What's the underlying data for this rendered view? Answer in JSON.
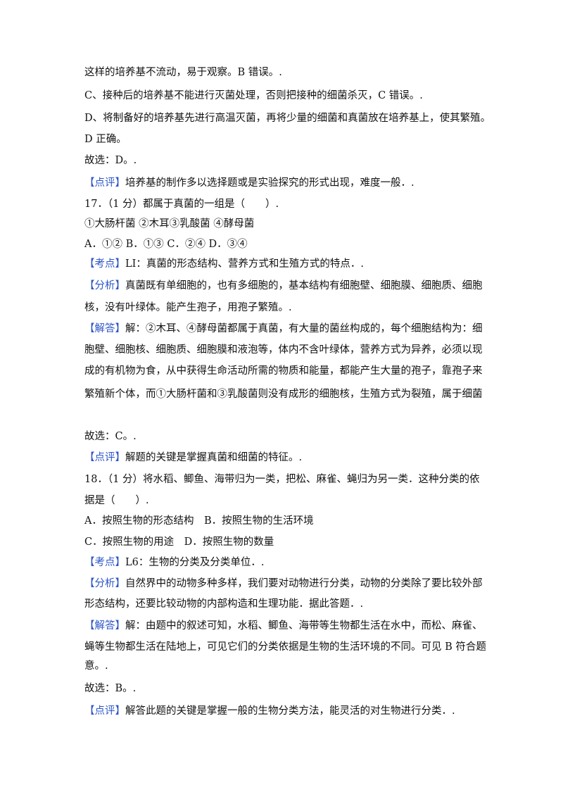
{
  "lines": [
    {
      "text": "这样的培养基不流动，易于观察。B 错误。."
    },
    {
      "text": "C、接种后的培养基不能进行灭菌处理，否则把接种的细菌杀灭，C 错误。."
    },
    {
      "text": "D、将制备好的培养基先进行高温灭菌，再将少量的细菌和真菌放在培养基上，使其繁殖。"
    },
    {
      "text": "D 正确。"
    },
    {
      "text": "故选：D。."
    },
    {
      "tag": "【点评】",
      "text": "培养基的制作多以选择题或是实验探究的形式出现，难度一般．."
    },
    {
      "text": "17．（1 分）都属于真菌的一组是（　　）."
    },
    {
      "text": "①大肠杆菌 ②木耳③乳酸菌 ④酵母菌"
    },
    {
      "text": "A．①② B．①③ C．②④ D．③④"
    },
    {
      "tag": "【考点】",
      "text": "LI：真菌的形态结构、营养方式和生殖方式的特点．."
    },
    {
      "tag": "【分析】",
      "text": "真菌既有单细胞的，也有多细胞的，基本结构有细胞壁、细胞膜、细胞质、细胞"
    },
    {
      "text": "核，没有叶绿体。能产生孢子，用孢子繁殖。."
    },
    {
      "tag": "【解答】",
      "text": "解：②木耳、④酵母菌都属于真菌，有大量的菌丝构成的，每个细胞结构为：细"
    },
    {
      "text": "胞壁、细胞核、细胞质、细胞膜和液泡等，体内不含叶绿体，营养方式为异养，必须以现"
    },
    {
      "text": "成的有机物为食，从中获得生命活动所需的物质和能量，都能产生大量的孢子，靠孢子来"
    },
    {
      "text": "繁殖新个体，而①大肠杆菌和③乳酸菌则没有成形的细胞核，生殖方式为裂殖，属于细菌"
    },
    {
      "text": "故选：C。."
    },
    {
      "tag": "【点评】",
      "text": "解题的关键是掌握真菌和细菌的特征。."
    },
    {
      "text": "18．（1 分）将水稻、鲫鱼、海带归为一类，把松、麻雀、蝇归为另一类．这种分类的依"
    },
    {
      "text": "据是（　　）."
    },
    {
      "text": "A．按照生物的形态结构　B．按照生物的生活环境"
    },
    {
      "text": "C．按照生物的用途　D．按照生物的数量"
    },
    {
      "tag": "【考点】",
      "text": "L6：生物的分类及分类单位．."
    },
    {
      "tag": "【分析】",
      "text": "自然界中的动物多种多样，我们要对动物进行分类，动物的分类除了要比较外部"
    },
    {
      "text": "形态结构，还要比较动物的内部构造和生理功能．据此答题．."
    },
    {
      "tag": "【解答】",
      "text": "解：由题中的叙述可知，水稻、鲫鱼、海带等生物都生活在水中，而松、麻雀、"
    },
    {
      "text": "蝇等生物都生活在陆地上，可见它们的分类依据是生物的生活环境的不同。可见 B 符合题"
    },
    {
      "text": "意。."
    },
    {
      "text": "故选：B。."
    },
    {
      "tag": "【点评】",
      "text": "解答此题的关键是掌握一般的生物分类方法，能灵活的对生物进行分类．."
    }
  ]
}
